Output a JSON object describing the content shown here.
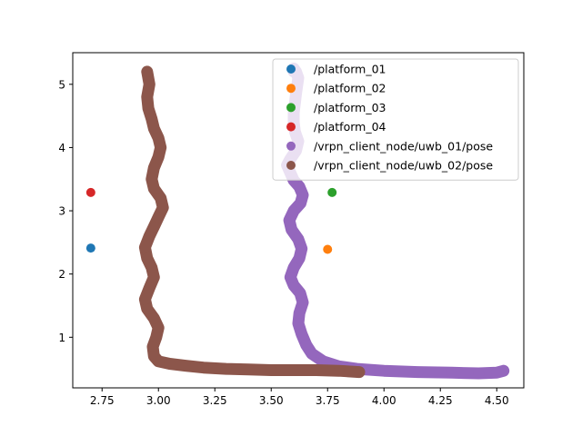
{
  "chart_data": {
    "type": "scatter",
    "title": "",
    "xlabel": "",
    "ylabel": "",
    "xlim": [
      2.62,
      4.62
    ],
    "ylim": [
      0.2,
      5.5
    ],
    "xticks": [
      2.75,
      3.0,
      3.25,
      3.5,
      3.75,
      4.0,
      4.25,
      4.5
    ],
    "xtick_labels": [
      "2.75",
      "3.00",
      "3.25",
      "3.50",
      "3.75",
      "4.00",
      "4.25",
      "4.50"
    ],
    "yticks": [
      1,
      2,
      3,
      4,
      5
    ],
    "ytick_labels": [
      "1",
      "2",
      "3",
      "4",
      "5"
    ],
    "grid": false,
    "legend_position": "top-right",
    "series": [
      {
        "name": "/platform_01",
        "color": "#1f77b4",
        "style": "points",
        "x": [
          2.7
        ],
        "y": [
          2.41
        ]
      },
      {
        "name": "/platform_02",
        "color": "#ff7f0e",
        "style": "points",
        "x": [
          3.75
        ],
        "y": [
          2.39
        ]
      },
      {
        "name": "/platform_03",
        "color": "#2ca02c",
        "style": "points",
        "x": [
          3.77
        ],
        "y": [
          3.29
        ]
      },
      {
        "name": "/platform_04",
        "color": "#d62728",
        "style": "points",
        "x": [
          2.7
        ],
        "y": [
          3.29
        ]
      },
      {
        "name": "/vrpn_client_node/uwb_01/pose",
        "color": "#9467bd",
        "style": "trajectory",
        "x": [
          4.53,
          4.5,
          4.42,
          4.3,
          4.15,
          4.0,
          3.88,
          3.8,
          3.73,
          3.68,
          3.655,
          3.635,
          3.62,
          3.625,
          3.64,
          3.628,
          3.6,
          3.585,
          3.6,
          3.625,
          3.635,
          3.62,
          3.59,
          3.58,
          3.6,
          3.63,
          3.64,
          3.625,
          3.6,
          3.585,
          3.57,
          3.585,
          3.61,
          3.62,
          3.605,
          3.6,
          3.6,
          3.605,
          3.61,
          3.615,
          3.62,
          3.61,
          3.6,
          3.605,
          3.6
        ],
        "y": [
          0.47,
          0.44,
          0.43,
          0.44,
          0.45,
          0.47,
          0.5,
          0.54,
          0.62,
          0.74,
          0.88,
          1.05,
          1.22,
          1.38,
          1.55,
          1.7,
          1.82,
          1.95,
          2.1,
          2.25,
          2.4,
          2.55,
          2.7,
          2.85,
          3.0,
          3.12,
          3.25,
          3.38,
          3.48,
          3.6,
          3.72,
          3.82,
          3.95,
          4.1,
          4.25,
          4.4,
          4.55,
          4.7,
          4.85,
          4.98,
          5.1,
          5.2,
          5.25,
          5.22,
          5.2
        ]
      },
      {
        "name": "/vrpn_client_node/uwb_02/pose",
        "color": "#8c564b",
        "style": "trajectory",
        "x": [
          3.89,
          3.8,
          3.7,
          3.6,
          3.5,
          3.4,
          3.3,
          3.2,
          3.12,
          3.05,
          3.0,
          2.98,
          2.975,
          2.99,
          3.0,
          2.98,
          2.95,
          2.94,
          2.96,
          2.98,
          2.97,
          2.95,
          2.94,
          2.96,
          2.98,
          3.0,
          3.02,
          3.01,
          2.98,
          2.97,
          2.98,
          3.0,
          3.01,
          3.0,
          2.98,
          2.97,
          2.955,
          2.95,
          2.96,
          2.95
        ],
        "y": [
          0.45,
          0.47,
          0.48,
          0.48,
          0.48,
          0.49,
          0.5,
          0.52,
          0.55,
          0.58,
          0.62,
          0.7,
          0.85,
          1.0,
          1.15,
          1.3,
          1.45,
          1.6,
          1.78,
          1.95,
          2.1,
          2.25,
          2.42,
          2.6,
          2.75,
          2.9,
          3.05,
          3.2,
          3.35,
          3.5,
          3.68,
          3.85,
          4.0,
          4.15,
          4.3,
          4.45,
          4.62,
          4.8,
          5.0,
          5.2
        ]
      }
    ]
  }
}
